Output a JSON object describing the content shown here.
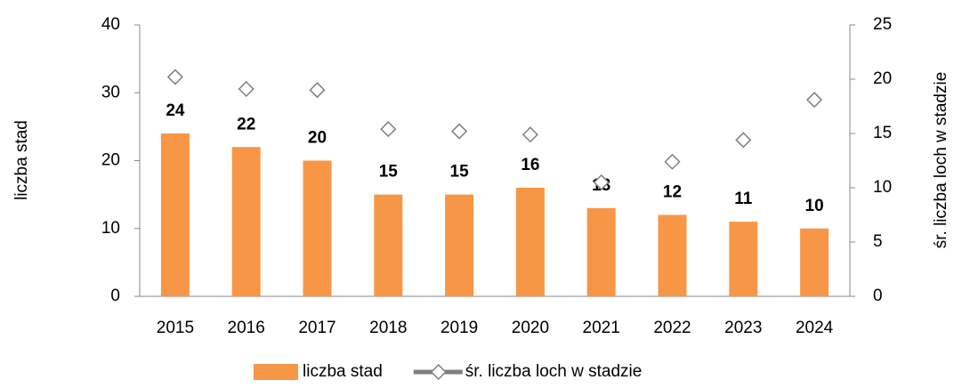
{
  "chart_data": {
    "type": "bar",
    "categories": [
      "2015",
      "2016",
      "2017",
      "2018",
      "2019",
      "2020",
      "2021",
      "2022",
      "2023",
      "2024"
    ],
    "series": [
      {
        "name": "liczba stad",
        "type": "bar",
        "color": "#f79646",
        "values": [
          24,
          22,
          20,
          15,
          15,
          16,
          13,
          12,
          11,
          10
        ]
      },
      {
        "name": "śr. liczba loch w stadzie",
        "type": "line",
        "axis": "y2",
        "color": "#7f7f7f",
        "values": [
          20.2,
          19.1,
          19.0,
          15.4,
          15.2,
          14.9,
          10.5,
          12.4,
          14.4,
          18.1
        ]
      }
    ],
    "ylabel": "liczba stad",
    "y2label": "śr. liczba loch w stadzie",
    "ylim": [
      0,
      40
    ],
    "yticks": [
      0,
      10,
      20,
      30,
      40
    ],
    "y2lim": [
      0,
      25
    ],
    "y2ticks": [
      0,
      5,
      10,
      15,
      20,
      25
    ],
    "grid": false,
    "legend": "bottom"
  }
}
